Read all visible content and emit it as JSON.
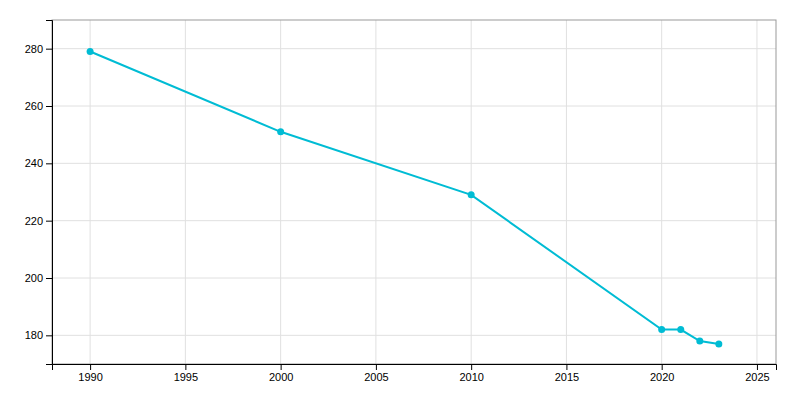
{
  "chart_data": {
    "type": "line",
    "x": [
      1990,
      2000,
      2010,
      2020,
      2021,
      2022,
      2023
    ],
    "values": [
      279,
      251,
      229,
      182,
      182,
      178,
      177
    ],
    "color": "#00BCD4",
    "marker": "circle",
    "xlim": [
      1988,
      2026
    ],
    "ylim": [
      170,
      290
    ],
    "xticks": [
      1990,
      1995,
      2000,
      2005,
      2010,
      2015,
      2020,
      2025
    ],
    "yticks": [
      180,
      200,
      220,
      240,
      260,
      280
    ],
    "grid": true
  }
}
